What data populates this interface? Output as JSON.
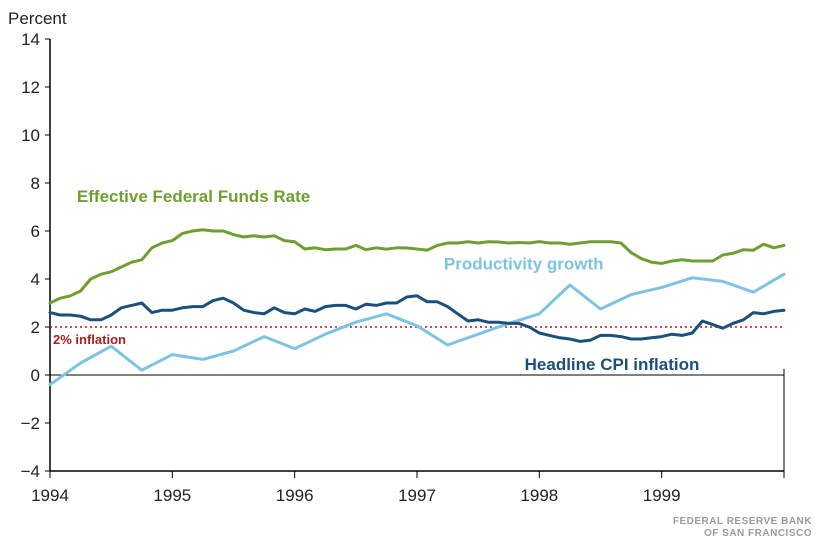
{
  "chart_data": {
    "type": "line",
    "title": "",
    "ylabel": "Percent",
    "xlabel": "",
    "ylim": [
      -4,
      14
    ],
    "yticks": [
      -4,
      -2,
      0,
      2,
      4,
      6,
      8,
      10,
      12,
      14
    ],
    "xlim": [
      1994,
      2000
    ],
    "xticks": [
      1994,
      1995,
      1996,
      1997,
      1998,
      1999
    ],
    "grid": false,
    "reference_line": {
      "label": "2% inflation",
      "value": 2,
      "color": "#b01c1c"
    },
    "series": [
      {
        "name": "Effective Federal Funds Rate",
        "color": "#6ea030",
        "x": [
          1994.0,
          1994.083,
          1994.167,
          1994.25,
          1994.333,
          1994.417,
          1994.5,
          1994.583,
          1994.667,
          1994.75,
          1994.833,
          1994.917,
          1995.0,
          1995.083,
          1995.167,
          1995.25,
          1995.333,
          1995.417,
          1995.5,
          1995.583,
          1995.667,
          1995.75,
          1995.833,
          1995.917,
          1996.0,
          1996.083,
          1996.167,
          1996.25,
          1996.333,
          1996.417,
          1996.5,
          1996.583,
          1996.667,
          1996.75,
          1996.833,
          1996.917,
          1997.0,
          1997.083,
          1997.167,
          1997.25,
          1997.333,
          1997.417,
          1997.5,
          1997.583,
          1997.667,
          1997.75,
          1997.833,
          1997.917,
          1998.0,
          1998.083,
          1998.167,
          1998.25,
          1998.333,
          1998.417,
          1998.5,
          1998.583,
          1998.667,
          1998.75,
          1998.833,
          1998.917,
          1999.0,
          1999.083,
          1999.167,
          1999.25,
          1999.333,
          1999.417,
          1999.5,
          1999.583,
          1999.667,
          1999.75,
          1999.833,
          1999.917,
          2000.0
        ],
        "y": [
          3.0,
          3.2,
          3.3,
          3.5,
          4.0,
          4.2,
          4.3,
          4.5,
          4.7,
          4.8,
          5.3,
          5.5,
          5.6,
          5.9,
          6.0,
          6.05,
          6.0,
          6.0,
          5.85,
          5.75,
          5.8,
          5.75,
          5.8,
          5.6,
          5.55,
          5.25,
          5.3,
          5.22,
          5.25,
          5.25,
          5.4,
          5.22,
          5.3,
          5.24,
          5.3,
          5.29,
          5.25,
          5.2,
          5.4,
          5.5,
          5.5,
          5.55,
          5.5,
          5.55,
          5.54,
          5.5,
          5.52,
          5.5,
          5.56,
          5.5,
          5.5,
          5.45,
          5.5,
          5.55,
          5.55,
          5.55,
          5.5,
          5.1,
          4.85,
          4.7,
          4.65,
          4.75,
          4.8,
          4.75,
          4.75,
          4.75,
          5.0,
          5.07,
          5.22,
          5.2,
          5.45,
          5.3,
          5.4
        ]
      },
      {
        "name": "Productivity growth",
        "color": "#7ec4e2",
        "x": [
          1994.0,
          1994.25,
          1994.5,
          1994.75,
          1995.0,
          1995.25,
          1995.5,
          1995.75,
          1996.0,
          1996.25,
          1996.5,
          1996.75,
          1997.0,
          1997.25,
          1997.5,
          1997.75,
          1998.0,
          1998.25,
          1998.5,
          1998.75,
          1999.0,
          1999.25,
          1999.5,
          1999.75,
          2000.0
        ],
        "y": [
          -0.4,
          0.5,
          1.2,
          0.2,
          0.85,
          0.65,
          1.0,
          1.6,
          1.1,
          1.7,
          2.2,
          2.55,
          2.05,
          1.25,
          1.7,
          2.15,
          2.55,
          3.75,
          2.75,
          3.35,
          3.65,
          4.05,
          3.9,
          3.45,
          4.2
        ]
      },
      {
        "name": "Headline CPI inflation",
        "color": "#1b4f7c",
        "x": [
          1994.0,
          1994.083,
          1994.167,
          1994.25,
          1994.333,
          1994.417,
          1994.5,
          1994.583,
          1994.667,
          1994.75,
          1994.833,
          1994.917,
          1995.0,
          1995.083,
          1995.167,
          1995.25,
          1995.333,
          1995.417,
          1995.5,
          1995.583,
          1995.667,
          1995.75,
          1995.833,
          1995.917,
          1996.0,
          1996.083,
          1996.167,
          1996.25,
          1996.333,
          1996.417,
          1996.5,
          1996.583,
          1996.667,
          1996.75,
          1996.833,
          1996.917,
          1997.0,
          1997.083,
          1997.167,
          1997.25,
          1997.333,
          1997.417,
          1997.5,
          1997.583,
          1997.667,
          1997.75,
          1997.833,
          1997.917,
          1998.0,
          1998.083,
          1998.167,
          1998.25,
          1998.333,
          1998.417,
          1998.5,
          1998.583,
          1998.667,
          1998.75,
          1998.833,
          1998.917,
          1999.0,
          1999.083,
          1999.167,
          1999.25,
          1999.333,
          1999.417,
          1999.5,
          1999.583,
          1999.667,
          1999.75,
          1999.833,
          1999.917,
          2000.0
        ],
        "y": [
          2.6,
          2.5,
          2.5,
          2.45,
          2.3,
          2.3,
          2.5,
          2.8,
          2.9,
          3.0,
          2.6,
          2.7,
          2.7,
          2.8,
          2.85,
          2.85,
          3.1,
          3.2,
          3.0,
          2.7,
          2.6,
          2.55,
          2.8,
          2.6,
          2.55,
          2.75,
          2.65,
          2.85,
          2.9,
          2.9,
          2.75,
          2.95,
          2.9,
          3.0,
          3.0,
          3.25,
          3.3,
          3.05,
          3.05,
          2.85,
          2.55,
          2.25,
          2.3,
          2.2,
          2.2,
          2.15,
          2.15,
          2.0,
          1.75,
          1.65,
          1.55,
          1.5,
          1.4,
          1.45,
          1.65,
          1.65,
          1.6,
          1.5,
          1.5,
          1.55,
          1.6,
          1.7,
          1.65,
          1.75,
          2.25,
          2.1,
          1.95,
          2.15,
          2.3,
          2.6,
          2.55,
          2.65,
          2.7
        ]
      }
    ],
    "series_labels": [
      {
        "text": "Effective Federal Funds Rate",
        "color": "#6ea030",
        "x": 1994.22,
        "y": 7.2
      },
      {
        "text": "Productivity growth",
        "color": "#7ec4e2",
        "x": 1997.22,
        "y": 4.4
      },
      {
        "text": "Headline CPI inflation",
        "color": "#1b4f7c",
        "x": 1997.88,
        "y": 0.2
      }
    ]
  },
  "logo": {
    "line1": "FEDERAL RESERVE BANK",
    "line2": "OF SAN FRANCISCO"
  }
}
